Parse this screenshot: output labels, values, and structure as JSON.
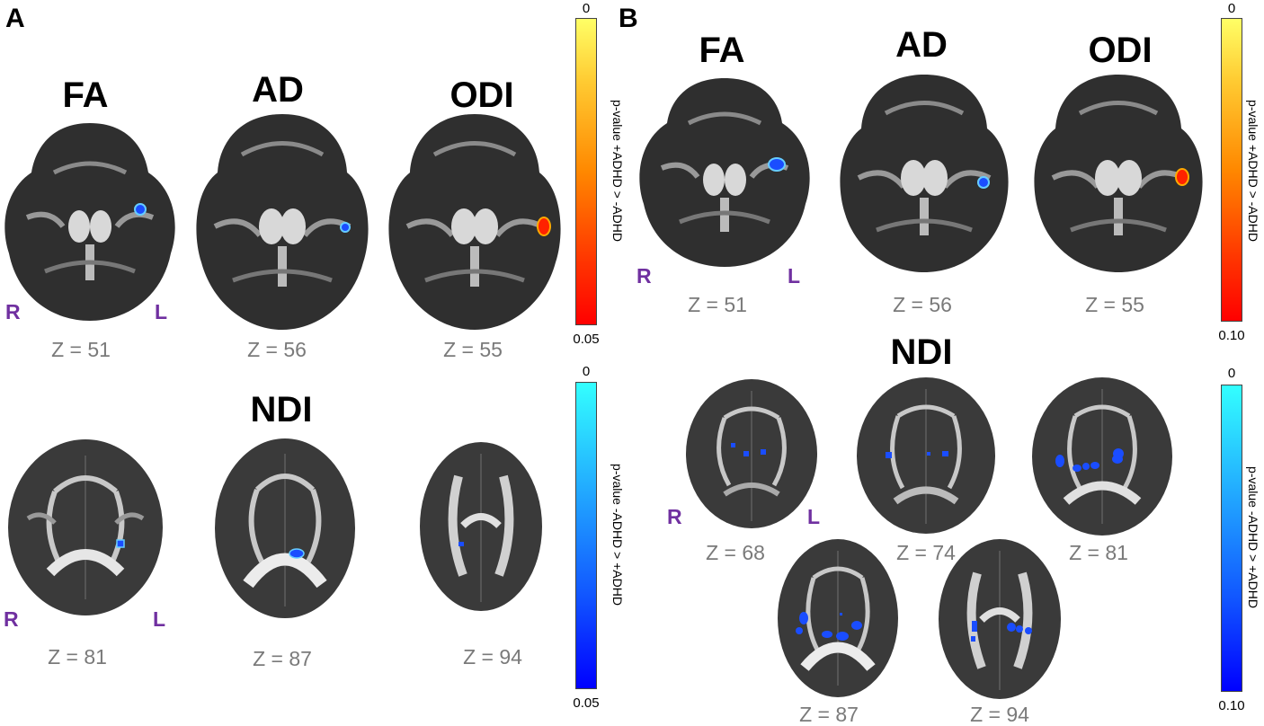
{
  "panels": {
    "A": {
      "letter": "A",
      "top_metrics": [
        "FA",
        "AD",
        "ODI"
      ],
      "top_z": [
        "Z = 51",
        "Z = 56",
        "Z = 55"
      ],
      "bottom_title": "NDI",
      "bottom_z": [
        "Z = 81",
        "Z = 87",
        "Z = 94"
      ],
      "orientation": {
        "right": "R",
        "left": "L"
      },
      "colorbar_warm": {
        "top": "0",
        "bottom": "0.05",
        "title": "p-value +ADHD > -ADHD"
      },
      "colorbar_cool": {
        "top": "0",
        "bottom": "0.05",
        "title": "p-value -ADHD > +ADHD"
      }
    },
    "B": {
      "letter": "B",
      "top_metrics": [
        "FA",
        "AD",
        "ODI"
      ],
      "top_z": [
        "Z = 51",
        "Z = 56",
        "Z = 55"
      ],
      "bottom_title": "NDI",
      "bottom_z": [
        "Z = 68",
        "Z = 74",
        "Z = 81",
        "Z = 87",
        "Z = 94"
      ],
      "orientation": {
        "right": "R",
        "left": "L"
      },
      "colorbar_warm": {
        "top": "0",
        "bottom": "0.10",
        "title": "p-value +ADHD > -ADHD"
      },
      "colorbar_cool": {
        "top": "0",
        "bottom": "0.10",
        "title": "p-value -ADHD > +ADHD"
      }
    }
  },
  "colors": {
    "warm_top": "#ffff66",
    "warm_bottom": "#ff0000",
    "cool_top": "#33ffff",
    "cool_bottom": "#0000ff",
    "orientation_label": "#7030a0",
    "z_label": "#7a7a7a"
  }
}
